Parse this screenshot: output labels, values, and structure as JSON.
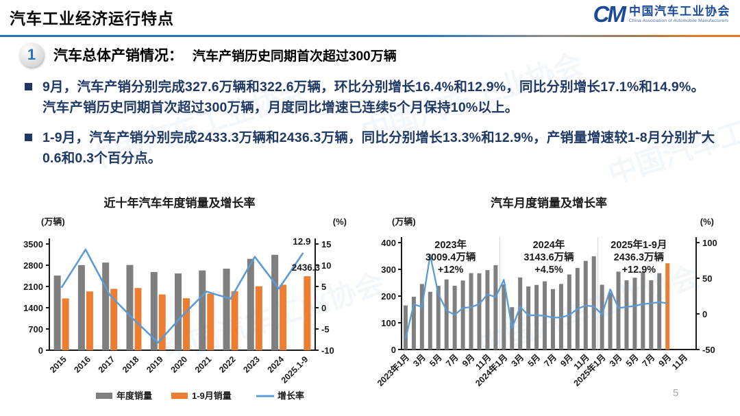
{
  "header": {
    "title": "汽车工业经济运行特点",
    "logo": {
      "monogram": "CM",
      "org_cn": "中国汽车工业协会",
      "org_en": "China Association of Automobile Manufacturers"
    }
  },
  "section": {
    "number": "1",
    "title": "汽车总体产销情况：",
    "subtitle": "汽车产销历史同期首次超过300万辆"
  },
  "bullets": [
    "9月，汽车产销分别完成327.6万辆和322.6万辆，环比分别增长16.4%和12.9%，同比分别增长17.1%和14.9%。汽车产销历史同期首次超过300万辆，月度同比增速已连续5个月保持10%以上。",
    "1-9月，汽车产销分别完成2433.3万辆和2436.3万辆，同比分别增长13.3%和12.9%，产销量增速较1-8月分别扩大0.6和0.3个百分点。"
  ],
  "page_number": "5",
  "watermark": {
    "text": "中国汽车工业协会"
  },
  "colors": {
    "bar_gray": "#7F7F7F",
    "bar_orange": "#ED7D31",
    "line_blue": "#5B9BD5",
    "text_navy": "#1F3864",
    "accent_blue": "#2E75B6",
    "logo_blue": "#1B4A97",
    "divider_orange": "#E87722"
  },
  "chart_data": [
    {
      "type": "bar",
      "title": "近十年汽车年度销量及增长率",
      "ylabel_left": "(万辆)",
      "ylabel_right": "(%)",
      "categories": [
        "2015",
        "2016",
        "2017",
        "2018",
        "2019",
        "2020",
        "2021",
        "2022",
        "2023",
        "2024",
        "2025.1-9"
      ],
      "series": [
        {
          "name": "年度销量",
          "type": "bar",
          "axis": "left",
          "color": "#7F7F7F",
          "values": [
            2459.8,
            2802.8,
            2887.9,
            2808.1,
            2576.9,
            2531.1,
            2627.5,
            2686.4,
            3009.4,
            3143.6,
            null
          ]
        },
        {
          "name": "1-9月销量",
          "type": "bar",
          "axis": "left",
          "color": "#ED7D31",
          "values": [
            1705.7,
            1936.0,
            2022.5,
            2049.1,
            1837.1,
            1711.6,
            1862.3,
            1947.0,
            2106.9,
            2157.1,
            2436.3
          ]
        },
        {
          "name": "增长率",
          "type": "line",
          "axis": "right",
          "color": "#5B9BD5",
          "values": [
            4.7,
            13.7,
            3.0,
            -2.8,
            -8.2,
            -1.9,
            3.8,
            2.1,
            12.0,
            4.5,
            12.9
          ]
        }
      ],
      "ylim_left": [
        0,
        3500
      ],
      "yticks_left": [
        0,
        700,
        1400,
        2100,
        2800,
        3500
      ],
      "ylim_right": [
        -10,
        15
      ],
      "yticks_right": [
        -10,
        -5,
        0,
        5,
        10,
        15
      ],
      "end_labels": {
        "line": "12.9",
        "bar": "2436.3"
      },
      "legend_position": "bottom",
      "grid": false
    },
    {
      "type": "bar",
      "title": "汽车月度销量及增长率",
      "ylabel_left": "(万辆)",
      "ylabel_right": "(%)",
      "categories": [
        "2023年1月",
        "2023年2月",
        "2023年3月",
        "2023年4月",
        "2023年5月",
        "2023年6月",
        "2023年7月",
        "2023年8月",
        "2023年9月",
        "2023年10月",
        "2023年11月",
        "2023年12月",
        "2024年1月",
        "2024年2月",
        "2024年3月",
        "2024年4月",
        "2024年5月",
        "2024年6月",
        "2024年7月",
        "2024年8月",
        "2024年9月",
        "2024年10月",
        "2024年11月",
        "2024年12月",
        "2025年1月",
        "2025年2月",
        "2025年3月",
        "2025年4月",
        "2025年5月",
        "2025年6月",
        "2025年7月",
        "2025年8月",
        "2025年9月"
      ],
      "x_labels_shown": [
        "2023年1月",
        "3月",
        "5月",
        "7月",
        "9月",
        "11月",
        "2024年1月",
        "3月",
        "5月",
        "7月",
        "9月",
        "11月",
        "2025年1月",
        "3月",
        "5月",
        "7月",
        "9月",
        "11月"
      ],
      "series": [
        {
          "name": "月度销量",
          "type": "bar",
          "axis": "left",
          "color": "#7F7F7F",
          "values": [
            164.9,
            197.6,
            245.1,
            215.9,
            238.2,
            262.2,
            238.7,
            258.2,
            285.8,
            285.3,
            297.0,
            315.6,
            243.9,
            158.4,
            269.4,
            235.9,
            241.7,
            255.2,
            226.2,
            245.3,
            280.9,
            305.3,
            331.6,
            348.9,
            242.3,
            212.9,
            291.5,
            259.0,
            268.6,
            290.4,
            259.3,
            285.7,
            322.6
          ]
        },
        {
          "name": "增长率",
          "type": "line",
          "axis": "right",
          "color": "#5B9BD5",
          "values": [
            -35.0,
            13.5,
            9.7,
            82.7,
            27.9,
            4.8,
            -1.4,
            8.4,
            9.5,
            13.8,
            27.4,
            23.5,
            47.9,
            -19.9,
            9.9,
            -2.0,
            -1.9,
            -2.7,
            -5.2,
            -5.0,
            -1.7,
            7.0,
            11.7,
            10.5,
            -0.6,
            34.4,
            8.2,
            9.8,
            11.2,
            13.8,
            14.7,
            16.5,
            14.9
          ]
        }
      ],
      "last_bar_color": "#ED7D31",
      "slots": 36,
      "year_separator_slots": [
        12,
        24
      ],
      "annotations": [
        {
          "lines": [
            "2023年",
            "3009.4万辆",
            "+12%"
          ],
          "center_slot": 6
        },
        {
          "lines": [
            "2024年",
            "3143.6万辆",
            "+4.5%"
          ],
          "center_slot": 18
        },
        {
          "lines": [
            "2025年1-9月",
            "2436.3万辆",
            "+12.9%"
          ],
          "center_slot": 29
        }
      ],
      "ylim_left": [
        0,
        400
      ],
      "yticks_left": [
        0,
        100,
        200,
        300,
        400
      ],
      "ylim_right": [
        -50,
        100
      ],
      "yticks_right": [
        -50,
        0,
        50,
        100
      ],
      "legend_position": "none",
      "grid": false
    }
  ]
}
